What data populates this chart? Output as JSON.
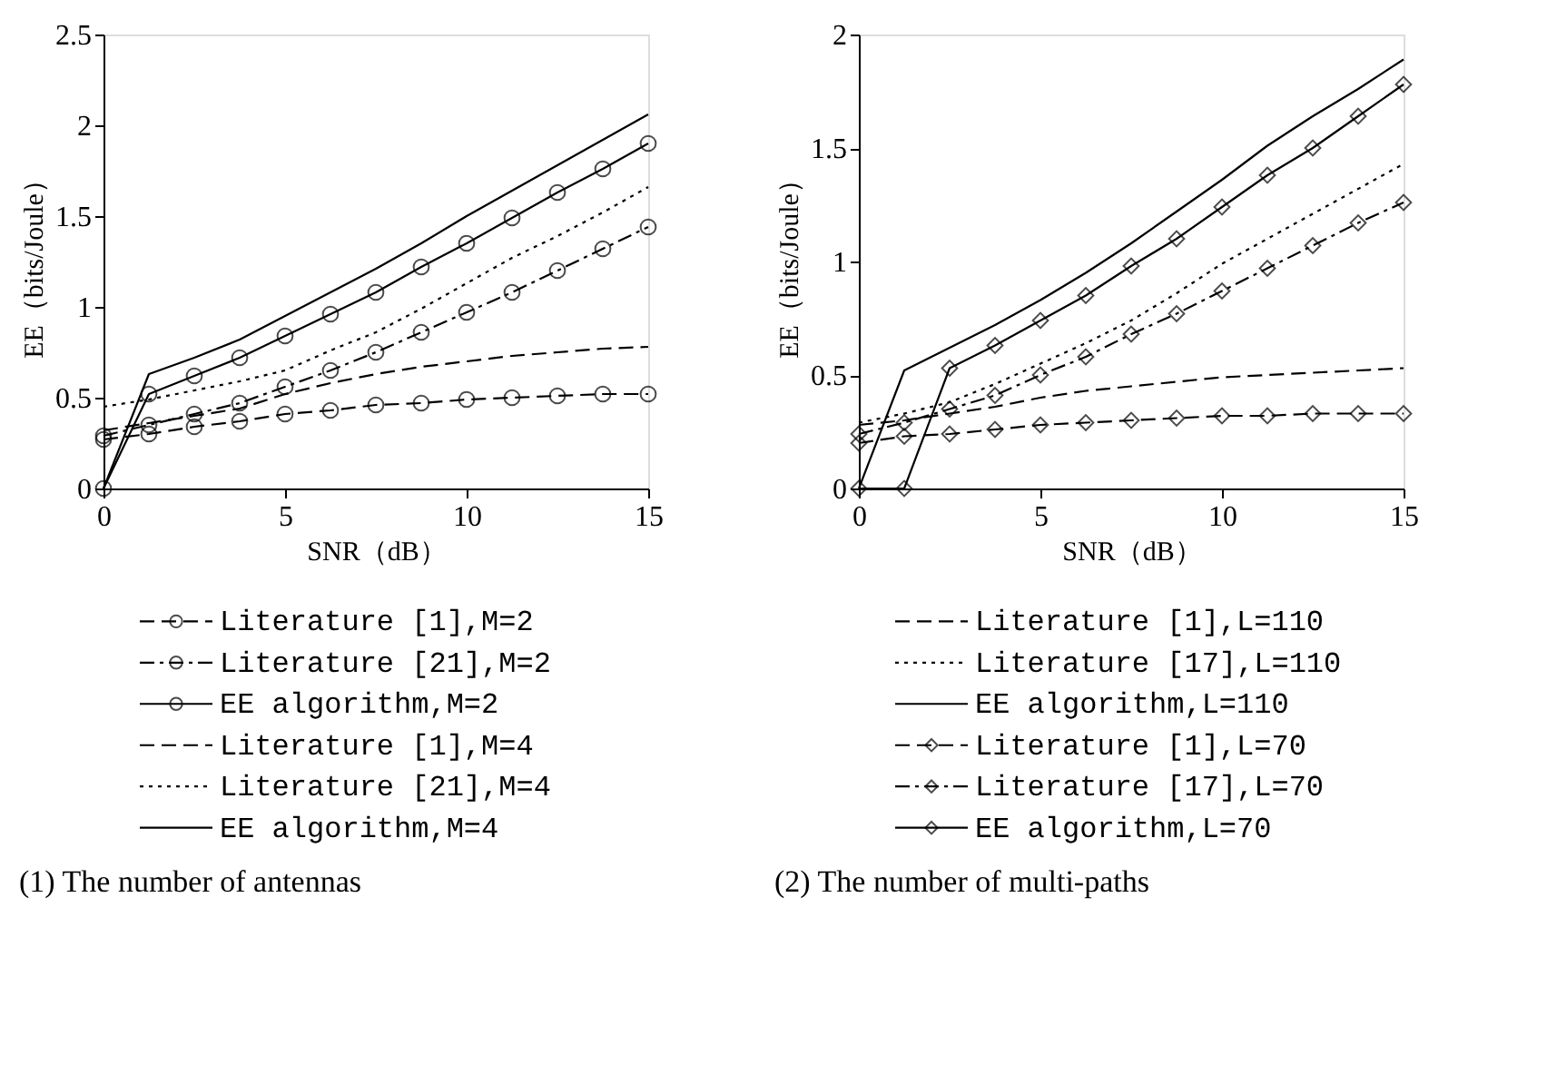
{
  "chart_data": [
    {
      "type": "line",
      "title": "(1) The number of antennas",
      "xlabel": "SNR（dB）",
      "ylabel": "EE（bits/Joule）",
      "x": [
        0,
        1.25,
        2.5,
        3.75,
        5,
        6.25,
        7.5,
        8.75,
        10,
        11.25,
        12.5,
        13.75,
        15
      ],
      "xlim": [
        0,
        15
      ],
      "xticks": [
        0,
        5,
        10,
        15
      ],
      "ylim": [
        0,
        2.5
      ],
      "yticks": [
        0,
        0.5,
        1,
        1.5,
        2,
        2.5
      ],
      "legend": "bottom",
      "series": [
        {
          "name": "Literature [1],M=2",
          "color": "#000000",
          "line_style": "dashed",
          "marker": "circle",
          "values": [
            0.27,
            0.3,
            0.34,
            0.37,
            0.41,
            0.43,
            0.46,
            0.47,
            0.49,
            0.5,
            0.51,
            0.52,
            0.52
          ]
        },
        {
          "name": "Literature [21],M=2",
          "color": "#000000",
          "line_style": "dashdot",
          "marker": "circle",
          "values": [
            0.29,
            0.35,
            0.41,
            0.47,
            0.56,
            0.65,
            0.75,
            0.86,
            0.97,
            1.08,
            1.2,
            1.32,
            1.44
          ]
        },
        {
          "name": "EE algorithm,M=2",
          "color": "#000000",
          "line_style": "solid",
          "marker": "circle",
          "values": [
            0,
            0.52,
            0.62,
            0.72,
            0.84,
            0.96,
            1.08,
            1.22,
            1.35,
            1.49,
            1.63,
            1.76,
            1.9
          ]
        },
        {
          "name": "Literature [1],M=4",
          "color": "#000000",
          "line_style": "dashed",
          "marker": "none",
          "values": [
            0.32,
            0.36,
            0.4,
            0.44,
            0.52,
            0.58,
            0.63,
            0.67,
            0.7,
            0.73,
            0.75,
            0.77,
            0.78
          ]
        },
        {
          "name": "Literature [21],M=4",
          "color": "#000000",
          "line_style": "dotted",
          "marker": "none",
          "values": [
            0.45,
            0.49,
            0.54,
            0.59,
            0.65,
            0.76,
            0.86,
            0.99,
            1.13,
            1.27,
            1.39,
            1.52,
            1.66
          ]
        },
        {
          "name": "EE algorithm,M=4",
          "color": "#000000",
          "line_style": "solid",
          "marker": "none",
          "values": [
            0,
            0.63,
            0.72,
            0.82,
            0.95,
            1.08,
            1.21,
            1.35,
            1.5,
            1.64,
            1.78,
            1.92,
            2.06
          ]
        }
      ]
    },
    {
      "type": "line",
      "title": "(2) The number of multi-paths",
      "xlabel": "SNR（dB）",
      "ylabel": "EE（bits/Joule）",
      "x": [
        0,
        1.25,
        2.5,
        3.75,
        5,
        6.25,
        7.5,
        8.75,
        10,
        11.25,
        12.5,
        13.75,
        15
      ],
      "xlim": [
        0,
        15
      ],
      "xticks": [
        0,
        5,
        10,
        15
      ],
      "ylim": [
        0,
        2
      ],
      "yticks": [
        0,
        0.5,
        1,
        1.5,
        2
      ],
      "legend": "bottom",
      "series": [
        {
          "name": "Literature [1],L=110",
          "color": "#000000",
          "line_style": "dashed",
          "marker": "none",
          "values": [
            0.28,
            0.3,
            0.33,
            0.36,
            0.4,
            0.43,
            0.45,
            0.47,
            0.49,
            0.5,
            0.51,
            0.52,
            0.53
          ]
        },
        {
          "name": "Literature [17],L=110",
          "color": "#000000",
          "line_style": "dotted",
          "marker": "none",
          "values": [
            0.29,
            0.33,
            0.38,
            0.46,
            0.55,
            0.64,
            0.74,
            0.86,
            0.99,
            1.1,
            1.21,
            1.32,
            1.43
          ]
        },
        {
          "name": "EE algorithm,L=110",
          "color": "#000000",
          "line_style": "solid",
          "marker": "none",
          "values": [
            0,
            0.52,
            0.62,
            0.72,
            0.83,
            0.95,
            1.08,
            1.22,
            1.36,
            1.51,
            1.64,
            1.76,
            1.89
          ]
        },
        {
          "name": "Literature [1],L=70",
          "color": "#000000",
          "line_style": "dashed",
          "marker": "diamond",
          "values": [
            0.2,
            0.23,
            0.24,
            0.26,
            0.28,
            0.29,
            0.3,
            0.31,
            0.32,
            0.32,
            0.33,
            0.33,
            0.33
          ]
        },
        {
          "name": "Literature [17],L=70",
          "color": "#000000",
          "line_style": "dashdot",
          "marker": "diamond",
          "values": [
            0.24,
            0.29,
            0.35,
            0.41,
            0.5,
            0.58,
            0.68,
            0.77,
            0.87,
            0.97,
            1.07,
            1.17,
            1.26
          ]
        },
        {
          "name": "EE algorithm,L=70",
          "color": "#000000",
          "line_style": "solid",
          "marker": "diamond",
          "values": [
            0,
            0,
            0.53,
            0.63,
            0.74,
            0.85,
            0.98,
            1.1,
            1.24,
            1.38,
            1.5,
            1.64,
            1.78
          ]
        }
      ]
    }
  ]
}
